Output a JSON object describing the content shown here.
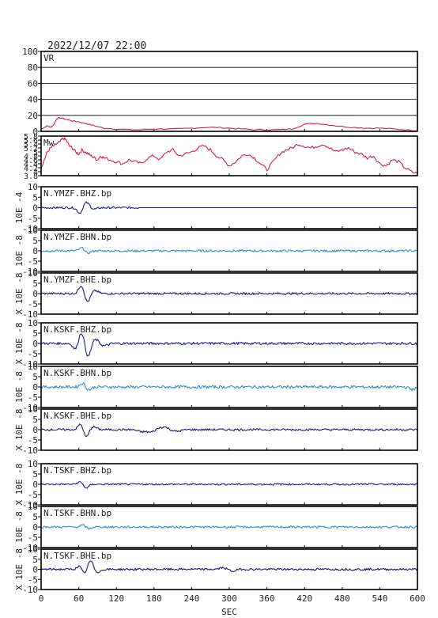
{
  "title": "2022/12/07 22:00",
  "xaxis": {
    "label": "SEC",
    "ticks": [
      0,
      60,
      120,
      180,
      240,
      300,
      360,
      420,
      480,
      540,
      600
    ],
    "range": [
      0,
      600
    ]
  },
  "chart_data": [
    {
      "type": "line",
      "label": "VR",
      "ylim": [
        0,
        100
      ],
      "yticks": [
        0,
        20,
        40,
        60,
        80,
        100
      ],
      "grid": true,
      "color": "#d81b4a",
      "x": [
        0,
        5,
        10,
        15,
        20,
        25,
        30,
        40,
        50,
        60,
        70,
        80,
        90,
        100,
        120,
        140,
        160,
        180,
        200,
        220,
        240,
        260,
        280,
        300,
        320,
        340,
        360,
        380,
        400,
        420,
        440,
        460,
        480,
        500,
        520,
        540,
        560,
        580,
        600
      ],
      "values": [
        3,
        5,
        7,
        5,
        8,
        16,
        17,
        15,
        13,
        12,
        10,
        8,
        6,
        4,
        3,
        2,
        2,
        3,
        3,
        3,
        4,
        5,
        5,
        4,
        3,
        2,
        2,
        2,
        3,
        9,
        10,
        8,
        6,
        5,
        4,
        4,
        3,
        2,
        1
      ]
    },
    {
      "type": "line",
      "label": "Mw",
      "ylim": [
        3.8,
        5.8
      ],
      "yticks": [
        3.8,
        4.0,
        4.2,
        4.4,
        4.6,
        4.8,
        5.0,
        5.2,
        5.4,
        5.6,
        5.8
      ],
      "color": "#d81b4a",
      "x": [
        0,
        5,
        10,
        15,
        20,
        25,
        30,
        35,
        40,
        45,
        50,
        55,
        60,
        65,
        70,
        75,
        80,
        85,
        90,
        95,
        100,
        110,
        120,
        130,
        140,
        150,
        160,
        170,
        180,
        190,
        200,
        210,
        220,
        230,
        240,
        250,
        260,
        270,
        280,
        290,
        300,
        310,
        320,
        330,
        340,
        350,
        360,
        370,
        380,
        390,
        400,
        410,
        420,
        430,
        440,
        450,
        460,
        470,
        480,
        490,
        500,
        510,
        520,
        530,
        540,
        550,
        560,
        570,
        580,
        590,
        600
      ],
      "values": [
        4.2,
        4.6,
        5.0,
        5.2,
        5.3,
        5.4,
        5.5,
        5.7,
        5.6,
        5.3,
        5.2,
        5.0,
        4.9,
        5.1,
        5.0,
        4.9,
        4.8,
        4.7,
        4.6,
        4.8,
        4.7,
        4.6,
        4.5,
        4.4,
        4.6,
        4.5,
        4.4,
        4.7,
        4.8,
        4.6,
        5.0,
        5.1,
        4.8,
        4.9,
        5.0,
        5.2,
        5.3,
        5.1,
        4.8,
        4.6,
        4.3,
        4.5,
        4.8,
        4.9,
        4.7,
        4.4,
        4.1,
        4.5,
        4.9,
        5.1,
        5.2,
        5.4,
        5.3,
        5.2,
        5.3,
        5.4,
        5.2,
        5.0,
        5.1,
        5.2,
        5.0,
        4.9,
        4.7,
        4.8,
        4.4,
        4.3,
        4.6,
        4.5,
        4.2,
        4.0,
        3.9
      ]
    },
    {
      "type": "line",
      "label": "N.YMZF.BHZ.bp",
      "ylabel": "10E -4",
      "ylim": [
        -10,
        10
      ],
      "yticks": [
        -10,
        -5,
        0,
        5,
        10
      ],
      "color": "#1a1aa0",
      "end": 155,
      "events": [
        {
          "t": 62,
          "a": -2.8,
          "w": 4
        },
        {
          "t": 72,
          "a": 2.6,
          "w": 5
        },
        {
          "t": 84,
          "a": -0.8,
          "w": 5
        }
      ],
      "noise": 0.5
    },
    {
      "type": "line",
      "label": "N.YMZF.BHN.bp",
      "ylabel": "10E -8",
      "ylim": [
        -10,
        10
      ],
      "yticks": [
        -10,
        -5,
        0,
        5,
        10
      ],
      "color": "#2b8fd6",
      "events": [
        {
          "t": 65,
          "a": 1.5,
          "w": 4
        },
        {
          "t": 74,
          "a": -1.2,
          "w": 4
        }
      ],
      "noise": 0.5
    },
    {
      "type": "line",
      "label": "N.YMZF.BHE.bp",
      "ylabel": "X 10E -8",
      "ylim": [
        -10,
        10
      ],
      "yticks": [
        -10,
        -5,
        0,
        5,
        10
      ],
      "color": "#1a1a70",
      "events": [
        {
          "t": 64,
          "a": 4.0,
          "w": 4
        },
        {
          "t": 74,
          "a": -4.2,
          "w": 4
        },
        {
          "t": 86,
          "a": 1.4,
          "w": 5
        }
      ],
      "noise": 0.5
    },
    {
      "type": "line",
      "label": "N.KSKF.BHZ.bp",
      "ylabel": "X 10E -8",
      "ylim": [
        -10,
        10
      ],
      "yticks": [
        -10,
        -5,
        0,
        5,
        10
      ],
      "color": "#1a1aa0",
      "events": [
        {
          "t": 55,
          "a": -3.0,
          "w": 4
        },
        {
          "t": 64,
          "a": 5.5,
          "w": 4
        },
        {
          "t": 75,
          "a": -6.5,
          "w": 4
        },
        {
          "t": 87,
          "a": 2.0,
          "w": 5
        },
        {
          "t": 100,
          "a": -1.2,
          "w": 6
        }
      ],
      "noise": 0.6
    },
    {
      "type": "line",
      "label": "N.KSKF.BHN.bp",
      "ylabel": "10E -8",
      "ylim": [
        -10,
        10
      ],
      "yticks": [
        -10,
        -5,
        0,
        5,
        10
      ],
      "color": "#2b8fd6",
      "events": [
        {
          "t": 66,
          "a": 1.8,
          "w": 4
        },
        {
          "t": 76,
          "a": -1.4,
          "w": 4
        },
        {
          "t": 592,
          "a": -1.2,
          "w": 5
        }
      ],
      "noise": 0.7
    },
    {
      "type": "line",
      "label": "N.KSKF.BHE.bp",
      "ylabel": "X 10E -8",
      "ylim": [
        -10,
        10
      ],
      "yticks": [
        -10,
        -5,
        0,
        5,
        10
      ],
      "color": "#1a1a70",
      "events": [
        {
          "t": 63,
          "a": 2.8,
          "w": 4
        },
        {
          "t": 72,
          "a": -3.8,
          "w": 4
        },
        {
          "t": 83,
          "a": 1.5,
          "w": 5
        },
        {
          "t": 160,
          "a": -1.0,
          "w": 6
        },
        {
          "t": 175,
          "a": -1.2,
          "w": 6
        },
        {
          "t": 195,
          "a": 1.3,
          "w": 8
        },
        {
          "t": 215,
          "a": -0.9,
          "w": 7
        }
      ],
      "noise": 0.5
    },
    {
      "type": "line",
      "label": "N.TSKF.BHZ.bp",
      "ylabel": "X 10E -8",
      "ylim": [
        -10,
        10
      ],
      "yticks": [
        -10,
        -5,
        0,
        5,
        10
      ],
      "color": "#1a1aa0",
      "events": [
        {
          "t": 62,
          "a": 1.2,
          "w": 4
        },
        {
          "t": 72,
          "a": -1.8,
          "w": 4
        }
      ],
      "noise": 0.4
    },
    {
      "type": "line",
      "label": "N.TSKF.BHN.bp",
      "ylabel": "10E -8",
      "ylim": [
        -10,
        10
      ],
      "yticks": [
        -10,
        -5,
        0,
        5,
        10
      ],
      "color": "#2b8fd6",
      "events": [
        {
          "t": 66,
          "a": 0.9,
          "w": 4
        },
        {
          "t": 76,
          "a": -0.8,
          "w": 4
        }
      ],
      "noise": 0.5
    },
    {
      "type": "line",
      "label": "N.TSKF.BHE.bp",
      "ylabel": "X 10E -8",
      "ylim": [
        -10,
        10
      ],
      "yticks": [
        -10,
        -5,
        0,
        5,
        10
      ],
      "color": "#1a1a70",
      "events": [
        {
          "t": 62,
          "a": 2.0,
          "w": 4
        },
        {
          "t": 68,
          "a": -2.5,
          "w": 4
        },
        {
          "t": 79,
          "a": 4.3,
          "w": 4
        },
        {
          "t": 90,
          "a": -1.4,
          "w": 5
        },
        {
          "t": 290,
          "a": 0.8,
          "w": 5
        },
        {
          "t": 305,
          "a": -0.9,
          "w": 5
        }
      ],
      "noise": 0.5
    }
  ]
}
